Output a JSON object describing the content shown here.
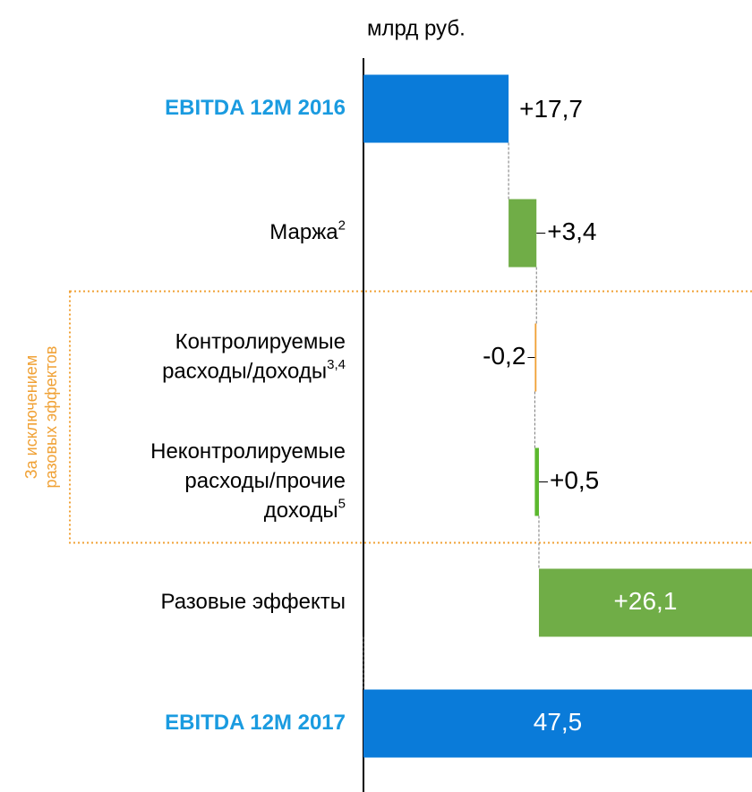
{
  "chart_data": {
    "type": "waterfall",
    "unit": "млрд руб.",
    "categories": [
      [
        "EBITDA 12M 2016"
      ],
      [
        "Маржа"
      ],
      [
        "Контролируемые",
        "расходы/доходы"
      ],
      [
        "Неконтролируемые",
        "расходы/прочие",
        "доходы"
      ],
      [
        "Разовые эффекты"
      ],
      [
        "EBITDA 12M 2017"
      ]
    ],
    "category_notes": [
      null,
      "2",
      "3,4",
      "5",
      null,
      null
    ],
    "bar_kinds": [
      "total",
      "delta",
      "delta",
      "delta",
      "delta",
      "total"
    ],
    "values": [
      17.7,
      3.4,
      -0.2,
      0.5,
      26.1,
      47.5
    ],
    "value_labels": [
      "+17,7",
      "+3,4",
      "-0,2",
      "+0,5",
      "+26,1",
      "47,5"
    ],
    "colors": [
      "#0a7bd9",
      "#70ad47",
      "#f0a135",
      "#5cb82e",
      "#70ad47",
      "#0a7bd9"
    ],
    "total_label_color": "#1a9be0",
    "xlim": [
      0,
      47.5
    ],
    "group": {
      "label": [
        "За исключением",
        "разовых эффектов"
      ],
      "from": 2,
      "to": 3,
      "color": "#f0a135"
    }
  }
}
